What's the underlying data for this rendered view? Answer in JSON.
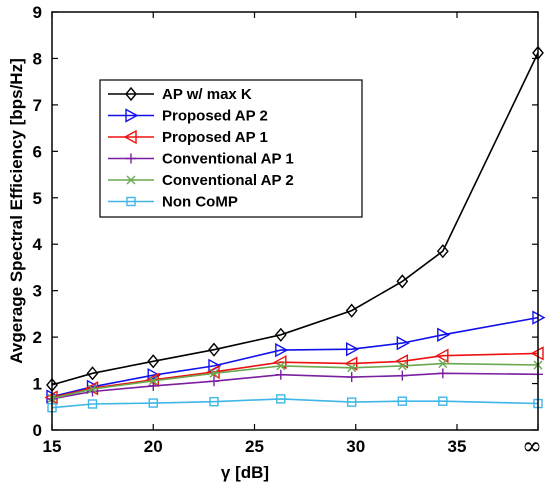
{
  "chart_data": {
    "type": "line",
    "xlabel": "γ [dB]",
    "ylabel": "Avgerage Spectral Efficiency [bps/Hz]",
    "ylim": [
      0,
      9
    ],
    "x_ticks": [
      "15",
      "20",
      "25",
      "30",
      "35",
      "∞"
    ],
    "y_ticks": [
      "0",
      "1",
      "2",
      "3",
      "4",
      "5",
      "6",
      "7",
      "8",
      "9"
    ],
    "x_domain": [
      15,
      39
    ],
    "x": [
      15,
      17,
      20,
      23,
      26.3,
      29.8,
      32.3,
      34.3,
      39
    ],
    "series": [
      {
        "name": "AP w/ max K",
        "color": "#000000",
        "marker": "diamond",
        "values": [
          0.97,
          1.22,
          1.48,
          1.73,
          2.05,
          2.57,
          3.2,
          3.85,
          8.12
        ]
      },
      {
        "name": "Proposed AP 2",
        "color": "#1010ee",
        "marker": "triangle-right",
        "values": [
          0.72,
          0.93,
          1.18,
          1.38,
          1.72,
          1.74,
          1.87,
          2.05,
          2.42
        ]
      },
      {
        "name": "Proposed AP 1",
        "color": "#ee1010",
        "marker": "triangle-left",
        "values": [
          0.7,
          0.9,
          1.08,
          1.25,
          1.46,
          1.43,
          1.48,
          1.6,
          1.65
        ]
      },
      {
        "name": "Conventional AP 1",
        "color": "#7b1fa2",
        "marker": "plus",
        "values": [
          0.67,
          0.83,
          0.95,
          1.05,
          1.19,
          1.14,
          1.17,
          1.22,
          1.2
        ]
      },
      {
        "name": "Conventional AP 2",
        "color": "#6aa84f",
        "marker": "x",
        "values": [
          0.68,
          0.88,
          1.06,
          1.22,
          1.38,
          1.34,
          1.38,
          1.43,
          1.4
        ]
      },
      {
        "name": "Non CoMP",
        "color": "#3fb6e6",
        "marker": "square",
        "values": [
          0.48,
          0.56,
          0.58,
          0.61,
          0.67,
          0.6,
          0.62,
          0.62,
          0.57
        ]
      }
    ],
    "legend_position": "upper-left",
    "grid": false
  }
}
